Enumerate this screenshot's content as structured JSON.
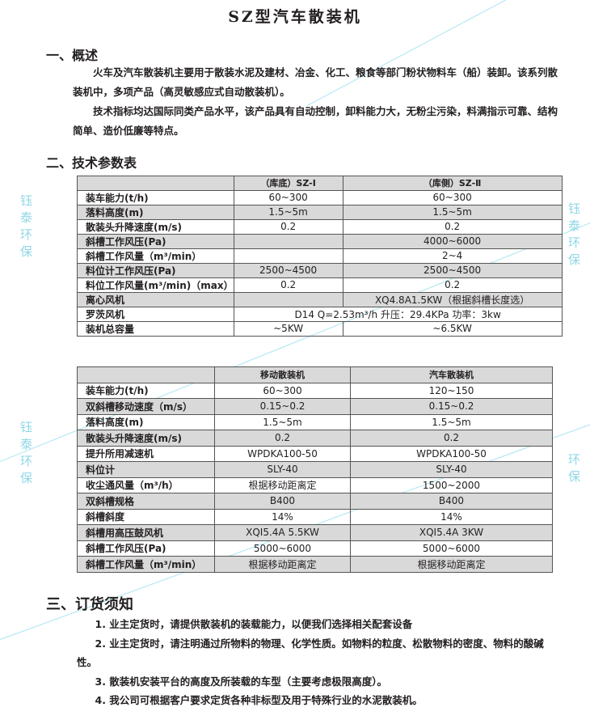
{
  "title": "SZ型汽车散装机",
  "watermark": "钰泰环保",
  "section1": {
    "heading": "一、概述",
    "para1": "火车及汽车散装机主要用于散装水泥及建材、冶金、化工、粮食等部门粉状物料车（船）装卸。该系列散装机中，多项产品（高灵敏感应式自动散装机）。",
    "para2": "技术指标均达国际同类产品水平，该产品具有自动控制，卸料能力大，无粉尘污染，料满指示可靠、结构简单、造价低廉等特点。"
  },
  "section2": {
    "heading": "二、技术参数表",
    "table1": {
      "headers": [
        "",
        "（库底）SZ-Ⅰ",
        "（库侧）SZ-Ⅱ"
      ],
      "rows": [
        [
          "装车能力(t/h)",
          "60~300",
          "60~300"
        ],
        [
          "落料高度(m)",
          "1.5~5m",
          "1.5~5m"
        ],
        [
          "散装头升降速度(m/s)",
          "0.2",
          "0.2"
        ],
        [
          "斜槽工作风压(Pa)",
          "",
          "4000~6000"
        ],
        [
          "斜槽工作风量（m³/min）",
          "",
          "2~4"
        ],
        [
          "料位计工作风压(Pa)",
          "2500~4500",
          "2500~4500"
        ],
        [
          "料位工作风量(m³/min)（max）",
          "0.2",
          "0.2"
        ],
        [
          "离心风机",
          "",
          "XQ4.8A1.5KW（根据斜槽长度选）"
        ],
        [
          "罗茨风机",
          "D14  Q=2.53m³/h  升压：29.4KPa  功率：3kw"
        ],
        [
          "装机总容量",
          "~5KW",
          "~6.5KW"
        ]
      ]
    },
    "table2": {
      "headers": [
        "",
        "移动散装机",
        "汽车散装机"
      ],
      "rows": [
        [
          "装车能力(t/h)",
          "60~300",
          "120~150"
        ],
        [
          "双斜槽移动速度（m/s）",
          "0.15~0.2",
          "0.15~0.2"
        ],
        [
          "落料高度(m)",
          "1.5~5m",
          "1.5~5m"
        ],
        [
          "散装头升降速度(m/s)",
          "0.2",
          "0.2"
        ],
        [
          "提升所用减速机",
          "WPDKA100-50",
          "WPDKA100-50"
        ],
        [
          "料位计",
          "SLY-40",
          "SLY-40"
        ],
        [
          "收尘通风量（m³/h）",
          "根据移动距离定",
          "1500~2000"
        ],
        [
          "双斜槽规格",
          "B400",
          "B400"
        ],
        [
          "斜槽斜度",
          "14%",
          "14%"
        ],
        [
          "斜槽用高压鼓风机",
          "XQI5.4A  5.5KW",
          "XQI5.4A  3KW"
        ],
        [
          "斜槽工作风压(Pa)",
          "5000~6000",
          "5000~6000"
        ],
        [
          "斜槽工作风量（m³/min）",
          "根据移动距离定",
          "根据移动距离定"
        ]
      ]
    }
  },
  "section3": {
    "heading": "三、订货须知",
    "items": [
      "1.  业主定货时，请提供散装机的装载能力，以便我们选择相关配套设备",
      "2.  业主定货时，请注明通过所物料的物理、化学性质。如物料的粒度、松散物料的密度、物料的酸碱性。",
      "3.  散装机安装平台的高度及所装载的车型（主要考虑极限高度）。",
      "4.  我公司可根据客户要求定货各种非标型及用于特殊行业的水泥散装机。"
    ]
  }
}
